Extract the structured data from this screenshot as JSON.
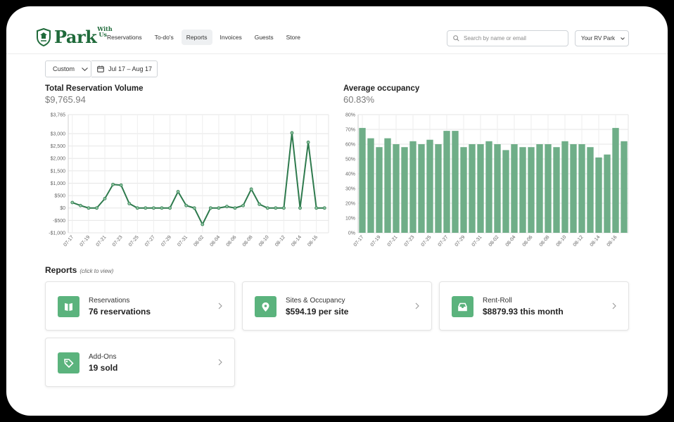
{
  "brand": {
    "name": "Park",
    "superscript": "With Us",
    "accent": "#1f6a3a",
    "bar_color": "#6fae88",
    "line_color": "#2e7a4d",
    "card_icon_color": "#5bb37d"
  },
  "nav": [
    {
      "label": "Reservations",
      "active": false
    },
    {
      "label": "To-do's",
      "active": false
    },
    {
      "label": "Reports",
      "active": true
    },
    {
      "label": "Invoices",
      "active": false
    },
    {
      "label": "Guests",
      "active": false
    },
    {
      "label": "Store",
      "active": false
    }
  ],
  "search": {
    "placeholder": "Search by name or email",
    "icon": "search-icon"
  },
  "park_select": {
    "label": "Your RV Park"
  },
  "filters": {
    "range_label": "Custom",
    "date_range": "Jul 17 – Aug 17"
  },
  "volume": {
    "title": "Total Reservation Volume",
    "total": "$9,765.94"
  },
  "occupancy": {
    "title": "Average occupancy",
    "average": "60.83%"
  },
  "chart_data": [
    {
      "type": "line",
      "title": "Total Reservation Volume",
      "x": [
        "07-17",
        "07-18",
        "07-19",
        "07-20",
        "07-21",
        "07-22",
        "07-23",
        "07-24",
        "07-25",
        "07-26",
        "07-27",
        "07-28",
        "07-29",
        "07-30",
        "07-31",
        "08-01",
        "08-02",
        "08-03",
        "08-04",
        "08-05",
        "08-06",
        "08-07",
        "08-08",
        "08-09",
        "08-10",
        "08-11",
        "08-12",
        "08-13",
        "08-14",
        "08-15",
        "08-16",
        "08-17"
      ],
      "tick_labels": [
        "07-17",
        "07-19",
        "07-21",
        "07-23",
        "07-25",
        "07-27",
        "07-29",
        "07-31",
        "08-02",
        "08-04",
        "08-06",
        "08-08",
        "08-10",
        "08-12",
        "08-14",
        "08-16"
      ],
      "y_tick_labels": [
        "$3,765",
        "$3,000",
        "$2,500",
        "$2,000",
        "$1,500",
        "$1,000",
        "$500",
        "$0",
        "-$500",
        "-$1,000"
      ],
      "y_ticks": [
        3765,
        3000,
        2500,
        2000,
        1500,
        1000,
        500,
        0,
        -500,
        -1000
      ],
      "ylim": [
        -1000,
        3765
      ],
      "values": [
        220,
        100,
        0,
        0,
        380,
        950,
        920,
        180,
        0,
        0,
        0,
        0,
        0,
        660,
        100,
        0,
        -660,
        0,
        0,
        60,
        0,
        100,
        760,
        150,
        0,
        0,
        0,
        3030,
        0,
        2650,
        0,
        0
      ],
      "grid": true
    },
    {
      "type": "bar",
      "title": "Average occupancy",
      "x": [
        "07-17",
        "07-18",
        "07-19",
        "07-20",
        "07-21",
        "07-22",
        "07-23",
        "07-24",
        "07-25",
        "07-26",
        "07-27",
        "07-28",
        "07-29",
        "07-30",
        "07-31",
        "08-01",
        "08-02",
        "08-03",
        "08-04",
        "08-05",
        "08-06",
        "08-07",
        "08-08",
        "08-09",
        "08-10",
        "08-11",
        "08-12",
        "08-13",
        "08-14",
        "08-15",
        "08-16",
        "08-17"
      ],
      "tick_labels": [
        "07-17",
        "07-19",
        "07-21",
        "07-23",
        "07-25",
        "07-27",
        "07-29",
        "07-31",
        "08-02",
        "08-04",
        "08-06",
        "08-08",
        "08-10",
        "08-12",
        "08-14",
        "08-16"
      ],
      "y_tick_labels": [
        "80%",
        "70%",
        "60%",
        "50%",
        "40%",
        "30%",
        "20%",
        "10%",
        "0%"
      ],
      "y_ticks": [
        80,
        70,
        60,
        50,
        40,
        30,
        20,
        10,
        0
      ],
      "ylim": [
        0,
        80
      ],
      "values": [
        71,
        64,
        58,
        64,
        60,
        58,
        62,
        60,
        63,
        60,
        69,
        69,
        58,
        60,
        60,
        62,
        60,
        56,
        60,
        58,
        58,
        60,
        60,
        58,
        62,
        60,
        60,
        58,
        51,
        53,
        71,
        62
      ],
      "grid": true
    }
  ],
  "reports": {
    "title": "Reports",
    "hint": "(click to view)",
    "cards": [
      {
        "label": "Reservations",
        "value": "76 reservations",
        "icon": "book-icon"
      },
      {
        "label": "Sites & Occupancy",
        "value": "$594.19 per site",
        "icon": "map-pin-icon"
      },
      {
        "label": "Rent-Roll",
        "value": "$8879.93 this month",
        "icon": "inbox-icon"
      },
      {
        "label": "Add-Ons",
        "value": "19 sold",
        "icon": "tag-icon"
      }
    ]
  }
}
